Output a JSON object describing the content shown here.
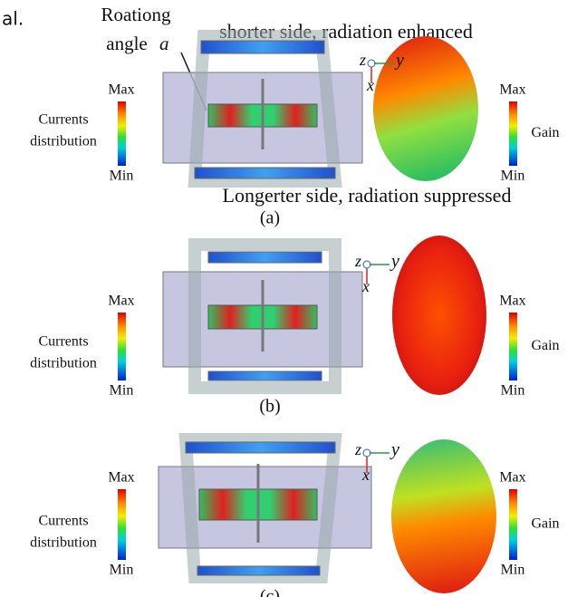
{
  "fragment": "al.",
  "rotation_label": {
    "line1": "Roationg",
    "line2": "angle",
    "symbol": "a"
  },
  "top_annotation": "shorter side, radiation enhanced",
  "bottom_annotation": "Longerter side, radiation suppressed",
  "panels": [
    {
      "label": "(a)",
      "current_bar": {
        "max": "Max",
        "min": "Min",
        "title": [
          "Currents",
          "distribution"
        ]
      },
      "gain_bar": {
        "max": "Max",
        "min": "Min",
        "title": "Gain"
      },
      "axes": {
        "z": "z",
        "y": "y",
        "x": "x"
      }
    },
    {
      "label": "(b)",
      "current_bar": {
        "max": "Max",
        "min": "Min",
        "title": [
          "Currents",
          "distribution"
        ]
      },
      "gain_bar": {
        "max": "Max",
        "min": "Min",
        "title": "Gain"
      },
      "axes": {
        "z": "z",
        "y": "y",
        "x": "x"
      }
    },
    {
      "label": "(c)",
      "current_bar": {
        "max": "Max",
        "min": "Min",
        "title": [
          "Currents",
          "distribution"
        ]
      },
      "gain_bar": {
        "max": "Max",
        "min": "Min",
        "title": "Gain"
      },
      "axes": {
        "z": "z",
        "y": "y",
        "x": "x"
      }
    }
  ]
}
